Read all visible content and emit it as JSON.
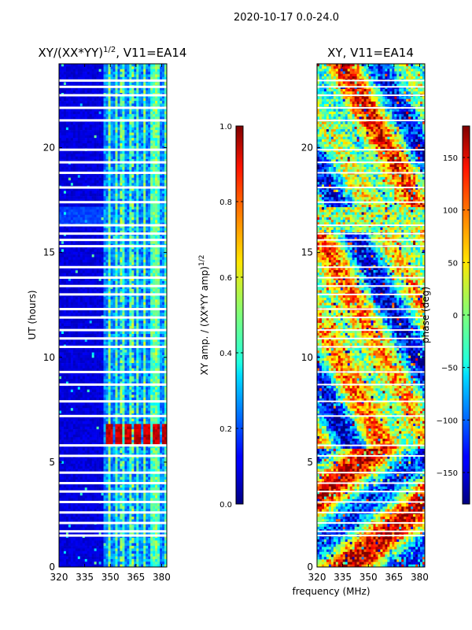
{
  "suptitle": "2020-10-17 0.0-24.0",
  "xlabel": "frequency (MHz)",
  "colors": {
    "band_bg": "#00008f",
    "gap": "#ffffff",
    "frame": "#000000"
  },
  "chart_data": [
    {
      "type": "heatmap",
      "title_prefix": "XY/(XX*YY)",
      "title_sup": "1/2",
      "title_suffix": ", V11=EA14",
      "ylabel": "UT (hours)",
      "xlim": [
        320,
        383
      ],
      "ylim": [
        0,
        24
      ],
      "xticks": [
        320,
        335,
        350,
        365,
        380
      ],
      "yticks": [
        0,
        5,
        10,
        15,
        20
      ],
      "mask_gaps_hours": [
        1.5,
        1.7,
        2.1,
        2.6,
        3.1,
        3.6,
        4.0,
        4.5,
        5.3,
        5.8,
        7.2,
        7.9,
        8.7,
        9.3,
        10.5,
        10.9,
        11.3,
        11.9,
        12.3,
        13.0,
        13.4,
        13.8,
        14.3,
        15.3,
        15.6,
        15.9,
        16.3,
        17.4,
        18.1,
        18.8,
        19.3,
        19.9,
        21.3,
        21.9,
        22.5,
        22.9,
        23.2
      ],
      "colorbar": {
        "label_prefix": "XY amp. / (XX*YY amp)",
        "label_sup": "1/2",
        "vmin": 0.0,
        "vmax": 1.0,
        "ticks": [
          0.0,
          0.2,
          0.4,
          0.6,
          0.8,
          1.0
        ],
        "tick_labels": [
          "0.0",
          "0.2",
          "0.4",
          "0.6",
          "0.8",
          "1.0"
        ]
      }
    },
    {
      "type": "heatmap",
      "title": "XY, V11=EA14",
      "xlim": [
        320,
        383
      ],
      "ylim": [
        0,
        24
      ],
      "xticks": [
        320,
        335,
        350,
        365,
        380
      ],
      "yticks": [
        0,
        5,
        10,
        15,
        20
      ],
      "colorbar": {
        "label": "phase (deg)",
        "vmin": -180,
        "vmax": 180,
        "ticks": [
          -150,
          -100,
          -50,
          0,
          50,
          100,
          150
        ],
        "tick_labels": [
          "−150",
          "−100",
          "−50",
          "0",
          "50",
          "100",
          "150"
        ]
      }
    }
  ]
}
